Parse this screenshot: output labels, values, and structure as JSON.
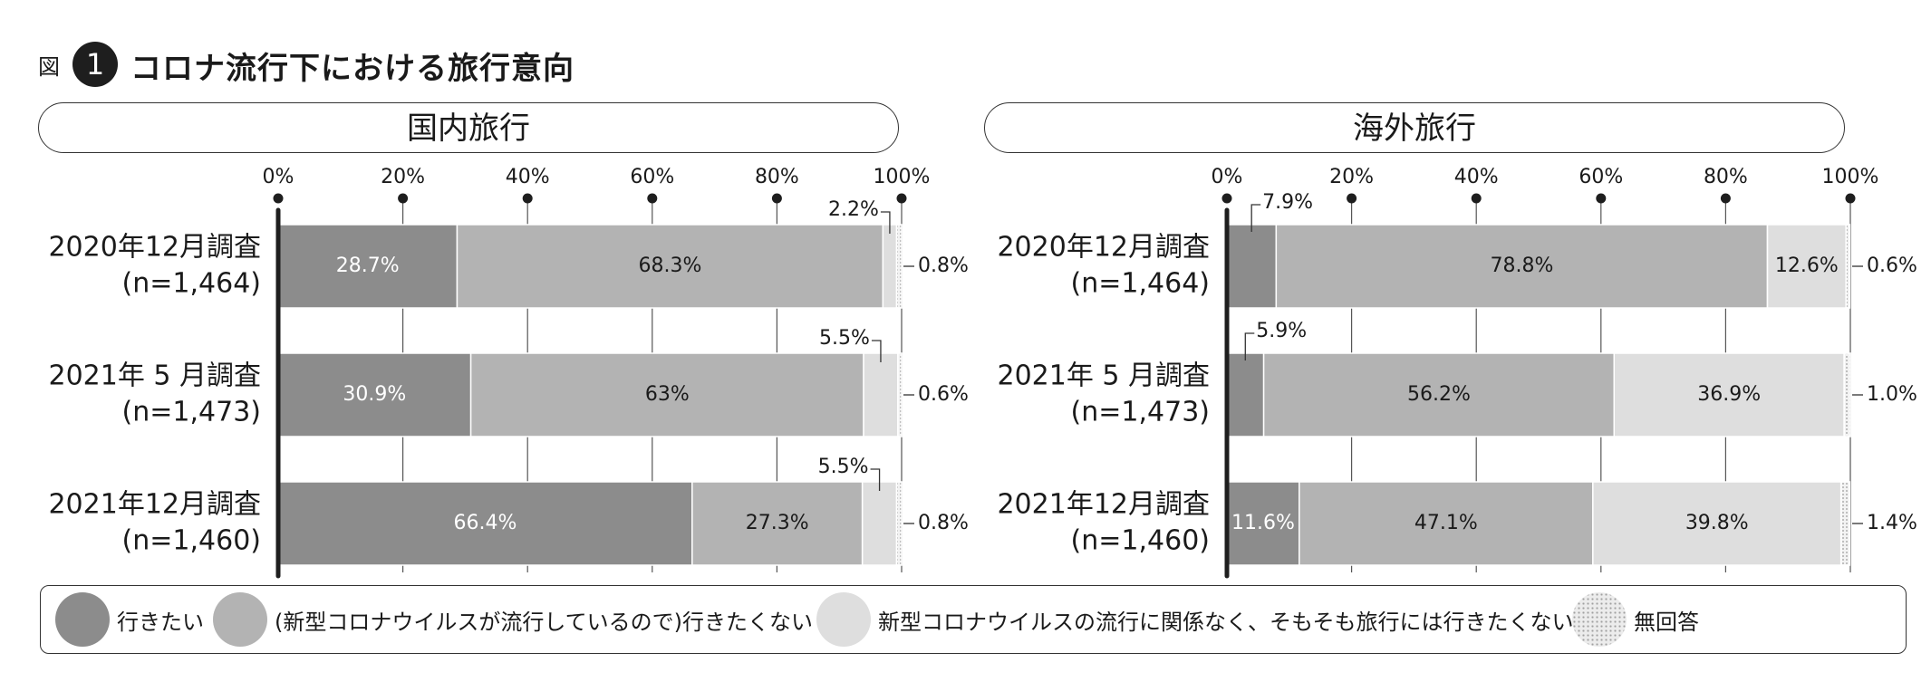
{
  "figure": {
    "prefix": "図",
    "number": "1",
    "title": "コロナ流行下における旅行意向"
  },
  "colors": {
    "want": "#8c8c8c",
    "not_covid": "#b3b3b3",
    "not_regardless": "#dedede",
    "no_answer": "#f3f3f3",
    "axis": "#1e1e1e"
  },
  "chart_data": [
    {
      "type": "bar",
      "orientation": "horizontal",
      "stacked": true,
      "title": "国内旅行",
      "xlim": [
        0,
        100
      ],
      "ticks": [
        "0%",
        "20%",
        "40%",
        "60%",
        "80%",
        "100%"
      ],
      "categories": [
        {
          "line1": "2020年12月調査",
          "line2": "(n=1,464)"
        },
        {
          "line1": "2021年 5 月調査",
          "line2": "(n=1,473)"
        },
        {
          "line1": "2021年12月調査",
          "line2": "(n=1,460)"
        }
      ],
      "series": [
        {
          "name": "行きたい",
          "values": [
            28.7,
            30.9,
            66.4
          ],
          "labels": [
            "28.7%",
            "30.9%",
            "66.4%"
          ]
        },
        {
          "name": "(新型コロナウイルスが流行しているので)行きたくない",
          "values": [
            68.3,
            63.0,
            27.3
          ],
          "labels": [
            "68.3%",
            "63%",
            "27.3%"
          ]
        },
        {
          "name": "新型コロナウイルスの流行に関係なく、そもそも旅行には行きたくない",
          "values": [
            2.2,
            5.5,
            5.5
          ],
          "labels": [
            "2.2%",
            "5.5%",
            "5.5%"
          ]
        },
        {
          "name": "無回答",
          "values": [
            0.8,
            0.6,
            0.8
          ],
          "labels": [
            "0.8%",
            "0.6%",
            "0.8%"
          ]
        }
      ]
    },
    {
      "type": "bar",
      "orientation": "horizontal",
      "stacked": true,
      "title": "海外旅行",
      "xlim": [
        0,
        100
      ],
      "ticks": [
        "0%",
        "20%",
        "40%",
        "60%",
        "80%",
        "100%"
      ],
      "categories": [
        {
          "line1": "2020年12月調査",
          "line2": "(n=1,464)"
        },
        {
          "line1": "2021年 5 月調査",
          "line2": "(n=1,473)"
        },
        {
          "line1": "2021年12月調査",
          "line2": "(n=1,460)"
        }
      ],
      "series": [
        {
          "name": "行きたい",
          "values": [
            7.9,
            5.9,
            11.6
          ],
          "labels": [
            "7.9%",
            "5.9%",
            "11.6%"
          ]
        },
        {
          "name": "(新型コロナウイルスが流行しているので)行きたくない",
          "values": [
            78.8,
            56.2,
            47.1
          ],
          "labels": [
            "78.8%",
            "56.2%",
            "47.1%"
          ]
        },
        {
          "name": "新型コロナウイルスの流行に関係なく、そもそも旅行には行きたくない",
          "values": [
            12.6,
            36.9,
            39.8
          ],
          "labels": [
            "12.6%",
            "36.9%",
            "39.8%"
          ]
        },
        {
          "name": "無回答",
          "values": [
            0.6,
            1.0,
            1.4
          ],
          "labels": [
            "0.6%",
            "1.0%",
            "1.4%"
          ]
        }
      ]
    }
  ],
  "legend": [
    {
      "label": "行きたい"
    },
    {
      "label": "(新型コロナウイルスが流行しているので)行きたくない"
    },
    {
      "label": "新型コロナウイルスの流行に関係なく、そもそも旅行には行きたくない"
    },
    {
      "label": "無回答"
    }
  ]
}
